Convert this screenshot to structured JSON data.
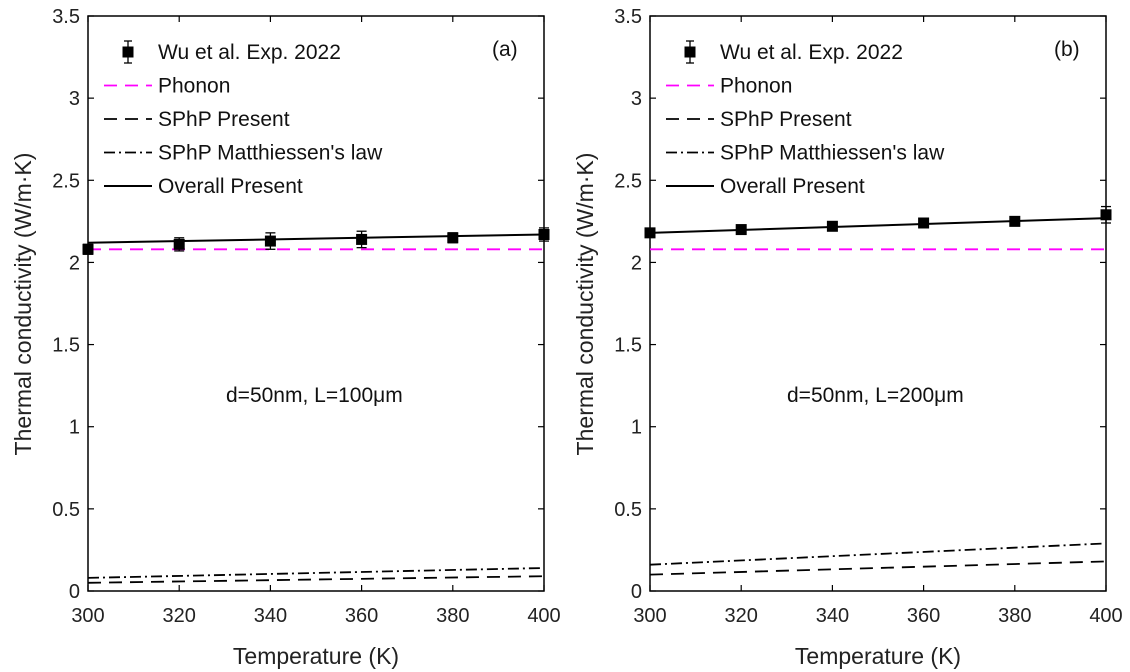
{
  "chart_data": [
    {
      "type": "line",
      "panel_tag": "(a)",
      "annotation": "d=50nm, L=100μm",
      "xlabel": "Temperature (K)",
      "ylabel": "Thermal conductivity (W/m·K)",
      "xlim": [
        300,
        400
      ],
      "ylim": [
        0,
        3.5
      ],
      "xticks": [
        "300",
        "320",
        "340",
        "360",
        "380",
        "400"
      ],
      "yticks": [
        "0",
        "0.5",
        "1",
        "1.5",
        "2",
        "2.5",
        "3",
        "3.5"
      ],
      "grid": false,
      "legend_position": "top-left",
      "series": [
        {
          "name": "Wu et al. Exp. 2022",
          "style": "marker-errorbar",
          "color": "#000000",
          "x": [
            300,
            320,
            340,
            360,
            380,
            400
          ],
          "y": [
            2.08,
            2.11,
            2.13,
            2.14,
            2.15,
            2.17
          ],
          "err": [
            0.03,
            0.04,
            0.05,
            0.05,
            0.03,
            0.04
          ]
        },
        {
          "name": "Phonon",
          "style": "dashed",
          "color": "#ff00ff",
          "x": [
            300,
            400
          ],
          "y": [
            2.08,
            2.08
          ]
        },
        {
          "name": "SPhP Present",
          "style": "dashed",
          "color": "#000000",
          "x": [
            300,
            400
          ],
          "y": [
            0.05,
            0.09
          ]
        },
        {
          "name": "SPhP Matthiessen's law",
          "style": "dashdot",
          "color": "#000000",
          "x": [
            300,
            400
          ],
          "y": [
            0.08,
            0.14
          ]
        },
        {
          "name": "Overall Present",
          "style": "solid",
          "color": "#000000",
          "x": [
            300,
            400
          ],
          "y": [
            2.12,
            2.17
          ]
        }
      ]
    },
    {
      "type": "line",
      "panel_tag": "(b)",
      "annotation": "d=50nm, L=200μm",
      "xlabel": "Temperature (K)",
      "ylabel": "Thermal conductivity (W/m·K)",
      "xlim": [
        300,
        400
      ],
      "ylim": [
        0,
        3.5
      ],
      "xticks": [
        "300",
        "320",
        "340",
        "360",
        "380",
        "400"
      ],
      "yticks": [
        "0",
        "0.5",
        "1",
        "1.5",
        "2",
        "2.5",
        "3",
        "3.5"
      ],
      "grid": false,
      "legend_position": "top-left",
      "series": [
        {
          "name": "Wu et al. Exp. 2022",
          "style": "marker-errorbar",
          "color": "#000000",
          "x": [
            300,
            320,
            340,
            360,
            380,
            400
          ],
          "y": [
            2.18,
            2.2,
            2.22,
            2.24,
            2.25,
            2.29
          ],
          "err": [
            0.02,
            0.02,
            0.02,
            0.02,
            0.02,
            0.05
          ]
        },
        {
          "name": "Phonon",
          "style": "dashed",
          "color": "#ff00ff",
          "x": [
            300,
            400
          ],
          "y": [
            2.08,
            2.08
          ]
        },
        {
          "name": "SPhP Present",
          "style": "dashed",
          "color": "#000000",
          "x": [
            300,
            400
          ],
          "y": [
            0.1,
            0.18
          ]
        },
        {
          "name": "SPhP Matthiessen's law",
          "style": "dashdot",
          "color": "#000000",
          "x": [
            300,
            400
          ],
          "y": [
            0.16,
            0.29
          ]
        },
        {
          "name": "Overall Present",
          "style": "solid",
          "color": "#000000",
          "x": [
            300,
            400
          ],
          "y": [
            2.18,
            2.27
          ]
        }
      ]
    }
  ]
}
